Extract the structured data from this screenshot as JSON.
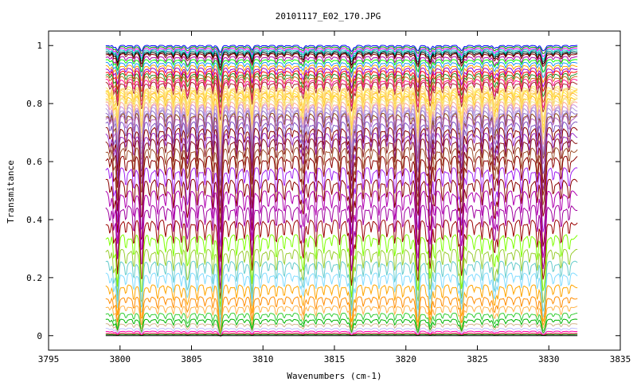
{
  "chart_data": {
    "type": "line",
    "title": "20101117_E02_170.JPG",
    "xlabel": "Wavenumbers (cm-1)",
    "ylabel": "Transmitance",
    "xlim": [
      3795,
      3835
    ],
    "ylim": [
      -0.05,
      1.05
    ],
    "x_range_data": [
      3799,
      3832
    ],
    "x_ticks": [
      "3795",
      "3800",
      "3805",
      "3810",
      "3815",
      "3820",
      "3825",
      "3830",
      "3835"
    ],
    "y_ticks": [
      "0",
      "0.2",
      "0.4",
      "0.6",
      "0.8",
      "1"
    ],
    "grid": false,
    "legend": "none",
    "absorption_lines_cm1": [
      3799.8,
      3801.5,
      3804.7,
      3807.0,
      3809.2,
      3812.8,
      3816.2,
      3820.8,
      3821.7,
      3823.9,
      3826.2,
      3829.6
    ],
    "series_baselines": [
      {
        "baseline": 1.0,
        "color": "#0000ff"
      },
      {
        "baseline": 0.995,
        "color": "#00aa00"
      },
      {
        "baseline": 0.99,
        "color": "#ff00ff"
      },
      {
        "baseline": 0.985,
        "color": "#00cccc"
      },
      {
        "baseline": 0.98,
        "color": "#008080"
      },
      {
        "baseline": 0.975,
        "color": "#000000"
      },
      {
        "baseline": 0.97,
        "color": "#8b0000"
      },
      {
        "baseline": 0.96,
        "color": "#aa00aa"
      },
      {
        "baseline": 0.95,
        "color": "#00ff00"
      },
      {
        "baseline": 0.94,
        "color": "#1e90ff"
      },
      {
        "baseline": 0.93,
        "color": "#ffa500"
      },
      {
        "baseline": 0.92,
        "color": "#9400d3"
      },
      {
        "baseline": 0.91,
        "color": "#ff0000"
      },
      {
        "baseline": 0.9,
        "color": "#228b22"
      },
      {
        "baseline": 0.89,
        "color": "#d2691e"
      },
      {
        "baseline": 0.88,
        "color": "#ff1493"
      },
      {
        "baseline": 0.87,
        "color": "#a52a2a"
      },
      {
        "baseline": 0.855,
        "color": "#fff176"
      },
      {
        "baseline": 0.85,
        "color": "#ffe082"
      },
      {
        "baseline": 0.845,
        "color": "#ffcc80"
      },
      {
        "baseline": 0.84,
        "color": "#ffd54f"
      },
      {
        "baseline": 0.835,
        "color": "#ffeb3b"
      },
      {
        "baseline": 0.83,
        "color": "#ffb74d"
      },
      {
        "baseline": 0.825,
        "color": "#fff59d"
      },
      {
        "baseline": 0.82,
        "color": "#ffc107"
      },
      {
        "baseline": 0.815,
        "color": "#ffe0b2"
      },
      {
        "baseline": 0.81,
        "color": "#f0e68c"
      },
      {
        "baseline": 0.8,
        "color": "#ffab91"
      },
      {
        "baseline": 0.79,
        "color": "#ce93d8"
      },
      {
        "baseline": 0.78,
        "color": "#b39ddb"
      },
      {
        "baseline": 0.77,
        "color": "#9575cd"
      },
      {
        "baseline": 0.76,
        "color": "#8b4513"
      },
      {
        "baseline": 0.75,
        "color": "#ba68c8"
      },
      {
        "baseline": 0.73,
        "color": "#7e57c2"
      },
      {
        "baseline": 0.71,
        "color": "#8b0000"
      },
      {
        "baseline": 0.69,
        "color": "#9932cc"
      },
      {
        "baseline": 0.67,
        "color": "#8b1a1a"
      },
      {
        "baseline": 0.64,
        "color": "#a0522d"
      },
      {
        "baseline": 0.61,
        "color": "#8b0000"
      },
      {
        "baseline": 0.57,
        "color": "#a020f0"
      },
      {
        "baseline": 0.53,
        "color": "#8b0000"
      },
      {
        "baseline": 0.49,
        "color": "#b000b0"
      },
      {
        "baseline": 0.44,
        "color": "#a000a0"
      },
      {
        "baseline": 0.39,
        "color": "#9b0000"
      },
      {
        "baseline": 0.34,
        "color": "#7fff00"
      },
      {
        "baseline": 0.29,
        "color": "#9acd32"
      },
      {
        "baseline": 0.25,
        "color": "#66cccc"
      },
      {
        "baseline": 0.21,
        "color": "#7fdbff"
      },
      {
        "baseline": 0.17,
        "color": "#ffa500"
      },
      {
        "baseline": 0.13,
        "color": "#ff8c00"
      },
      {
        "baseline": 0.1,
        "color": "#ffb347"
      },
      {
        "baseline": 0.075,
        "color": "#32cd32"
      },
      {
        "baseline": 0.055,
        "color": "#00b300"
      },
      {
        "baseline": 0.04,
        "color": "#d2b48c"
      },
      {
        "baseline": 0.025,
        "color": "#c0c0ff"
      },
      {
        "baseline": 0.015,
        "color": "#ff00aa"
      },
      {
        "baseline": 0.008,
        "color": "#dc143c"
      },
      {
        "baseline": 0.004,
        "color": "#008000"
      },
      {
        "baseline": 0.0,
        "color": "#000000"
      }
    ]
  }
}
